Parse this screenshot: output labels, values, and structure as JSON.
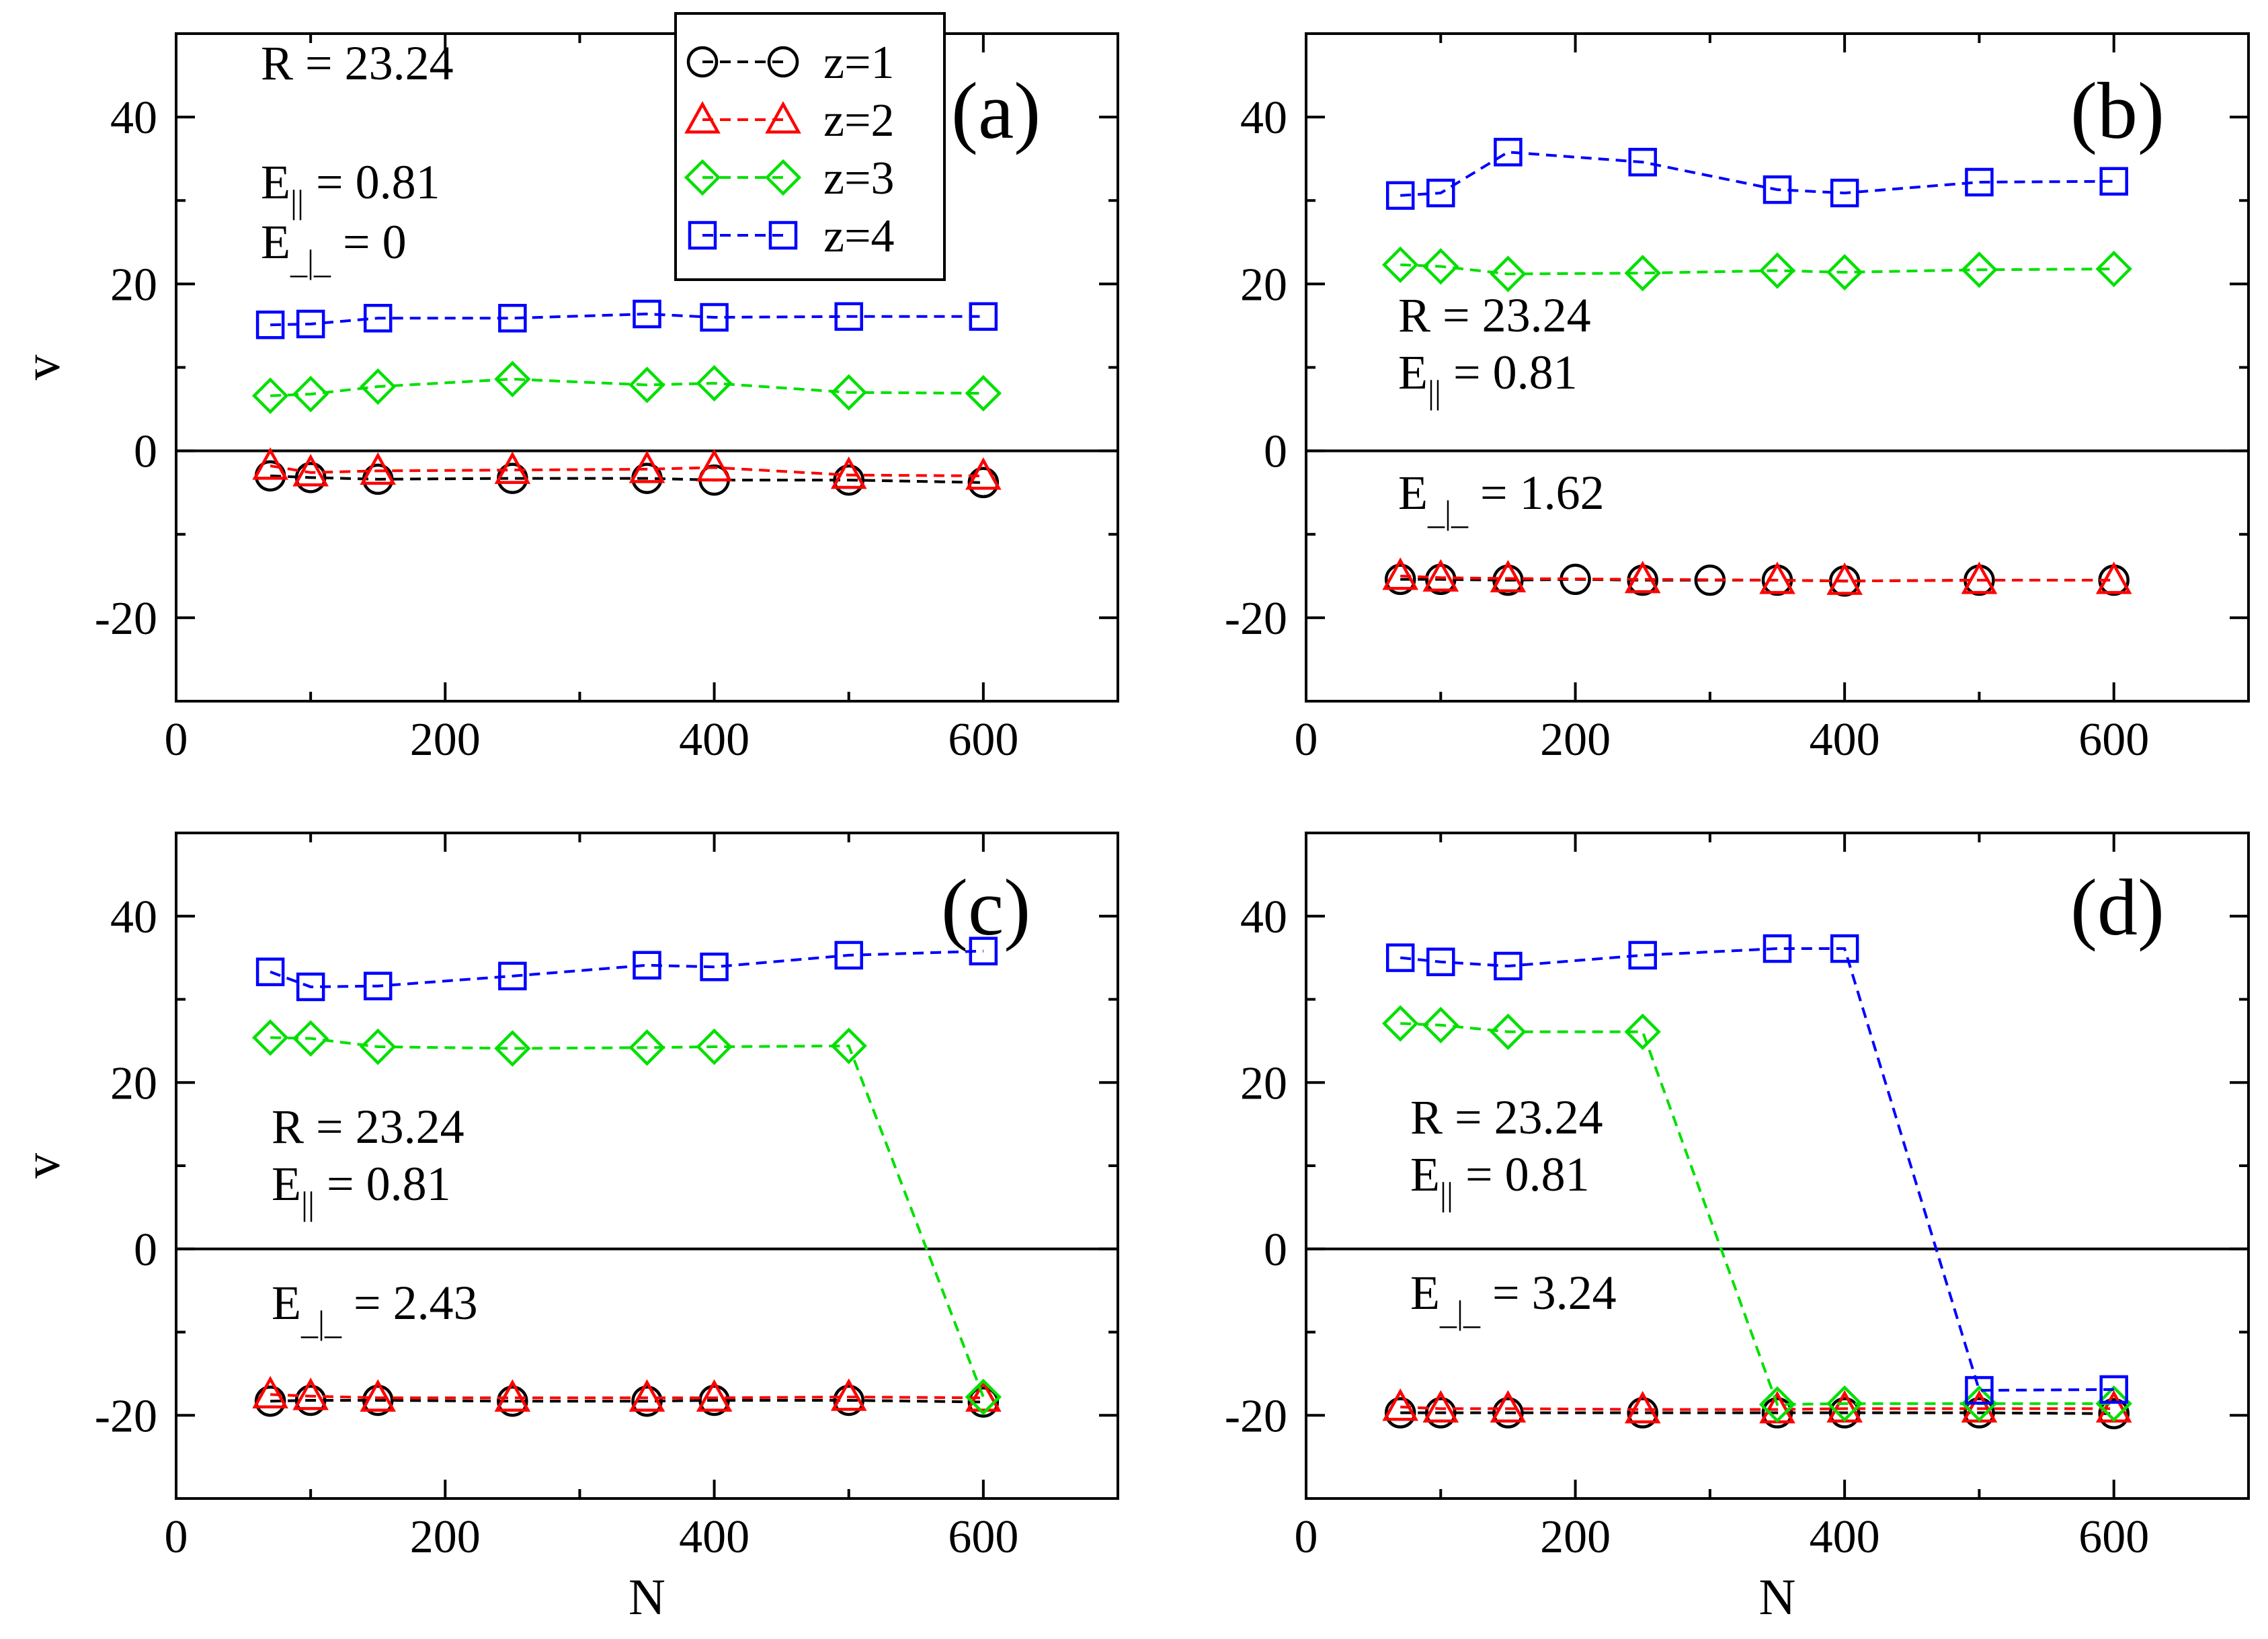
{
  "figure": {
    "x_axis_label": "N",
    "y_axis_label": "v"
  },
  "legend": {
    "entries": [
      {
        "label": "z=1",
        "marker": "circle",
        "color": "#000000"
      },
      {
        "label": "z=2",
        "marker": "triangle",
        "color": "#ff0000"
      },
      {
        "label": "z=3",
        "marker": "diamond",
        "color": "#00e000"
      },
      {
        "label": "z=4",
        "marker": "square",
        "color": "#0000ff"
      }
    ]
  },
  "chart_data": [
    {
      "type": "line",
      "panel": "(a)",
      "xlabel": "",
      "ylabel": "v",
      "xlim": [
        0,
        700
      ],
      "ylim": [
        -30,
        50
      ],
      "xticks": [
        0,
        200,
        400,
        600
      ],
      "yticks": [
        -20,
        0,
        20,
        40
      ],
      "annotations": {
        "R": "R = 23.24",
        "E_par": "E",
        "E_par_sub": "||",
        "E_par_val": " = 0.81",
        "E_perp": "E",
        "E_perp_sub": "_|_",
        "E_perp_val": " = 0"
      },
      "series": [
        {
          "name": "z=1",
          "x": [
            70,
            100,
            150,
            250,
            350,
            400,
            500,
            600
          ],
          "y": [
            -3.0,
            -3.2,
            -3.4,
            -3.3,
            -3.3,
            -3.5,
            -3.5,
            -3.8
          ]
        },
        {
          "name": "z=2",
          "x": [
            70,
            100,
            150,
            250,
            350,
            400,
            500,
            600
          ],
          "y": [
            -1.8,
            -2.6,
            -2.4,
            -2.3,
            -2.2,
            -2.0,
            -2.9,
            -3.0
          ]
        },
        {
          "name": "z=3",
          "x": [
            70,
            100,
            150,
            250,
            350,
            400,
            500,
            600
          ],
          "y": [
            6.6,
            6.8,
            7.7,
            8.6,
            7.9,
            8.1,
            7.0,
            6.9
          ]
        },
        {
          "name": "z=4",
          "x": [
            70,
            100,
            150,
            250,
            350,
            400,
            500,
            600
          ],
          "y": [
            15.1,
            15.2,
            15.9,
            15.9,
            16.4,
            16.0,
            16.1,
            16.1
          ]
        }
      ]
    },
    {
      "type": "line",
      "panel": "(b)",
      "xlabel": "",
      "ylabel": "",
      "xlim": [
        0,
        700
      ],
      "ylim": [
        -30,
        50
      ],
      "xticks": [
        0,
        200,
        400,
        600
      ],
      "yticks": [
        -20,
        0,
        20,
        40
      ],
      "annotations": {
        "R": "R = 23.24",
        "E_par": "E",
        "E_par_sub": "||",
        "E_par_val": " = 0.81",
        "E_perp": "E",
        "E_perp_sub": "_|_",
        "E_perp_val": " = 1.62"
      },
      "series": [
        {
          "name": "z=1",
          "x": [
            70,
            100,
            150,
            200,
            250,
            300,
            350,
            400,
            500,
            600
          ],
          "y": [
            -15.4,
            -15.4,
            -15.5,
            -15.4,
            -15.5,
            -15.5,
            -15.5,
            -15.6,
            -15.5,
            -15.5
          ]
        },
        {
          "name": "z=2",
          "x": [
            70,
            100,
            150,
            250,
            350,
            400,
            500,
            600
          ],
          "y": [
            -15.0,
            -15.2,
            -15.3,
            -15.4,
            -15.5,
            -15.6,
            -15.5,
            -15.5
          ]
        },
        {
          "name": "z=3",
          "x": [
            70,
            100,
            150,
            250,
            350,
            400,
            500,
            600
          ],
          "y": [
            22.3,
            22.1,
            21.2,
            21.3,
            21.6,
            21.4,
            21.7,
            21.8
          ]
        },
        {
          "name": "z=4",
          "x": [
            70,
            100,
            150,
            250,
            350,
            400,
            500,
            600
          ],
          "y": [
            30.6,
            30.9,
            35.8,
            34.6,
            31.3,
            30.9,
            32.2,
            32.3
          ]
        }
      ]
    },
    {
      "type": "line",
      "panel": "(c)",
      "xlabel": "N",
      "ylabel": "v",
      "xlim": [
        0,
        700
      ],
      "ylim": [
        -30,
        50
      ],
      "xticks": [
        0,
        200,
        400,
        600
      ],
      "yticks": [
        -20,
        0,
        20,
        40
      ],
      "annotations": {
        "R": "R = 23.24",
        "E_par": "E",
        "E_par_sub": "||",
        "E_par_val": " = 0.81",
        "E_perp": "E",
        "E_perp_sub": "_|_",
        "E_perp_val": " = 2.43"
      },
      "series": [
        {
          "name": "z=1",
          "x": [
            70,
            100,
            150,
            250,
            350,
            400,
            500,
            600
          ],
          "y": [
            -18.3,
            -18.2,
            -18.2,
            -18.3,
            -18.3,
            -18.2,
            -18.2,
            -18.4
          ]
        },
        {
          "name": "z=2",
          "x": [
            70,
            100,
            150,
            250,
            350,
            400,
            500,
            600
          ],
          "y": [
            -17.5,
            -17.7,
            -17.9,
            -17.9,
            -17.9,
            -17.9,
            -17.8,
            -17.9
          ]
        },
        {
          "name": "z=3",
          "x": [
            70,
            100,
            150,
            250,
            350,
            400,
            500,
            600
          ],
          "y": [
            25.4,
            25.3,
            24.3,
            24.1,
            24.2,
            24.3,
            24.4,
            -17.8
          ]
        },
        {
          "name": "z=4",
          "x": [
            70,
            100,
            150,
            250,
            350,
            400,
            500,
            600
          ],
          "y": [
            33.3,
            31.5,
            31.6,
            32.8,
            34.1,
            33.9,
            35.3,
            35.8
          ]
        }
      ]
    },
    {
      "type": "line",
      "panel": "(d)",
      "xlabel": "N",
      "ylabel": "",
      "xlim": [
        0,
        700
      ],
      "ylim": [
        -30,
        50
      ],
      "xticks": [
        0,
        200,
        400,
        600
      ],
      "yticks": [
        -20,
        0,
        20,
        40
      ],
      "annotations": {
        "R": "R = 23.24",
        "E_par": "E",
        "E_par_sub": "||",
        "E_par_val": " = 0.81",
        "E_perp": "E",
        "E_perp_sub": "_|_",
        "E_perp_val": " = 3.24"
      },
      "series": [
        {
          "name": "z=1",
          "x": [
            70,
            100,
            150,
            250,
            350,
            400,
            500,
            600
          ],
          "y": [
            -19.7,
            -19.7,
            -19.7,
            -19.7,
            -19.7,
            -19.7,
            -19.7,
            -19.8
          ]
        },
        {
          "name": "z=2",
          "x": [
            70,
            100,
            150,
            250,
            350,
            400,
            500,
            600
          ],
          "y": [
            -19.0,
            -19.2,
            -19.2,
            -19.3,
            -19.3,
            -19.2,
            -19.2,
            -19.2
          ]
        },
        {
          "name": "z=3",
          "x": [
            70,
            100,
            150,
            250,
            350,
            400,
            500,
            600
          ],
          "y": [
            27.1,
            26.9,
            26.1,
            26.1,
            -18.7,
            -18.6,
            -18.6,
            -18.6
          ]
        },
        {
          "name": "z=4",
          "x": [
            70,
            100,
            150,
            250,
            350,
            400,
            500,
            600
          ],
          "y": [
            35.0,
            34.5,
            34.0,
            35.3,
            36.1,
            36.1,
            -17.0,
            -16.9
          ]
        }
      ]
    }
  ]
}
